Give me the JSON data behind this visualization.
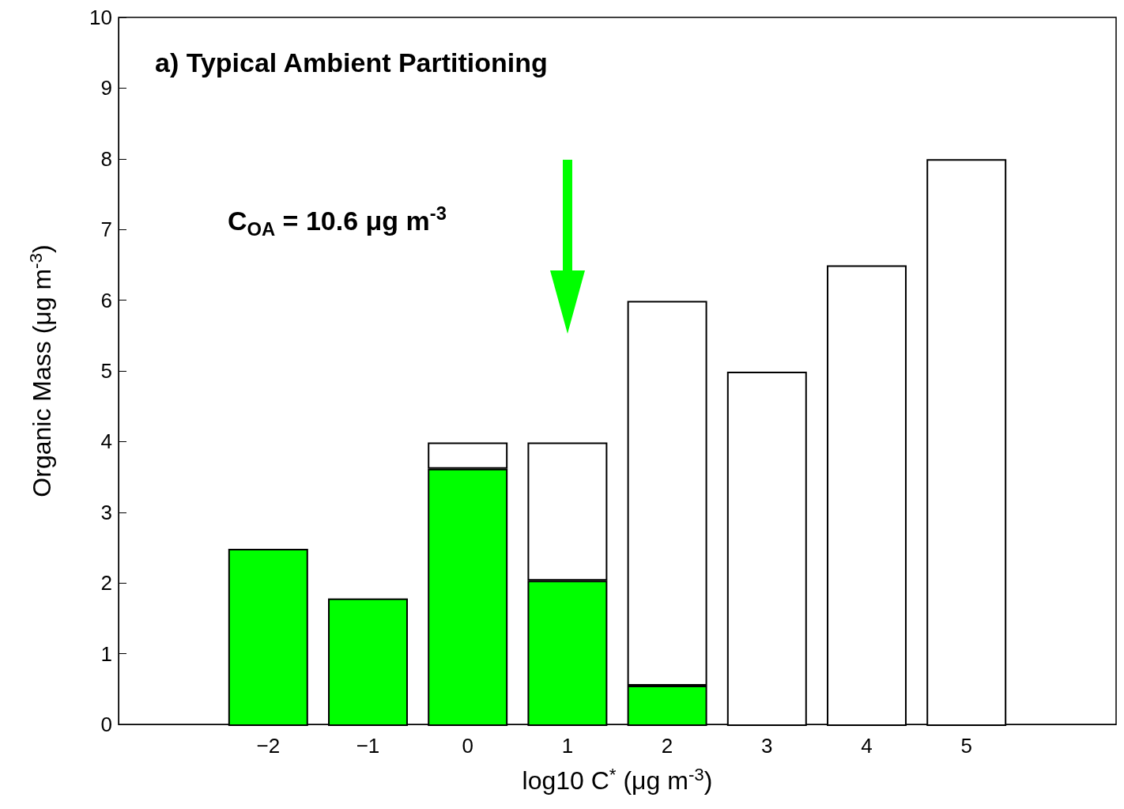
{
  "chart_data": {
    "type": "bar",
    "title": "a) Typical Ambient Partitioning",
    "xlabel": "log10 C$^{*}$ (μg m$^{-3}$)",
    "ylabel": "Organic Mass (μg m$^{-3}$)",
    "stacked": true,
    "x": [
      -2,
      -1,
      0,
      1,
      2,
      3,
      4,
      5
    ],
    "series": [
      {
        "color": "#00ff00",
        "values": [
          2.5,
          1.8,
          3.63,
          2.05,
          0.57,
          null,
          null,
          null
        ]
      },
      {
        "color": "#ffffff",
        "values": [
          null,
          null,
          0.37,
          1.95,
          5.43,
          5,
          6.5,
          8
        ]
      }
    ],
    "xlim": [
      -3.5,
      6.5
    ],
    "xticks": [
      {
        "value": -2,
        "label": "−2"
      },
      {
        "value": -1,
        "label": "−1"
      },
      0,
      1,
      2,
      3,
      4,
      5
    ],
    "ylim": [
      0,
      10
    ],
    "yticks": [
      0,
      1,
      2,
      3,
      4,
      5,
      6,
      7,
      8,
      9,
      10
    ],
    "annotations": [
      "C$_{OA}$ = 10.6 μg m$^{-3}$"
    ],
    "grid": false
  }
}
